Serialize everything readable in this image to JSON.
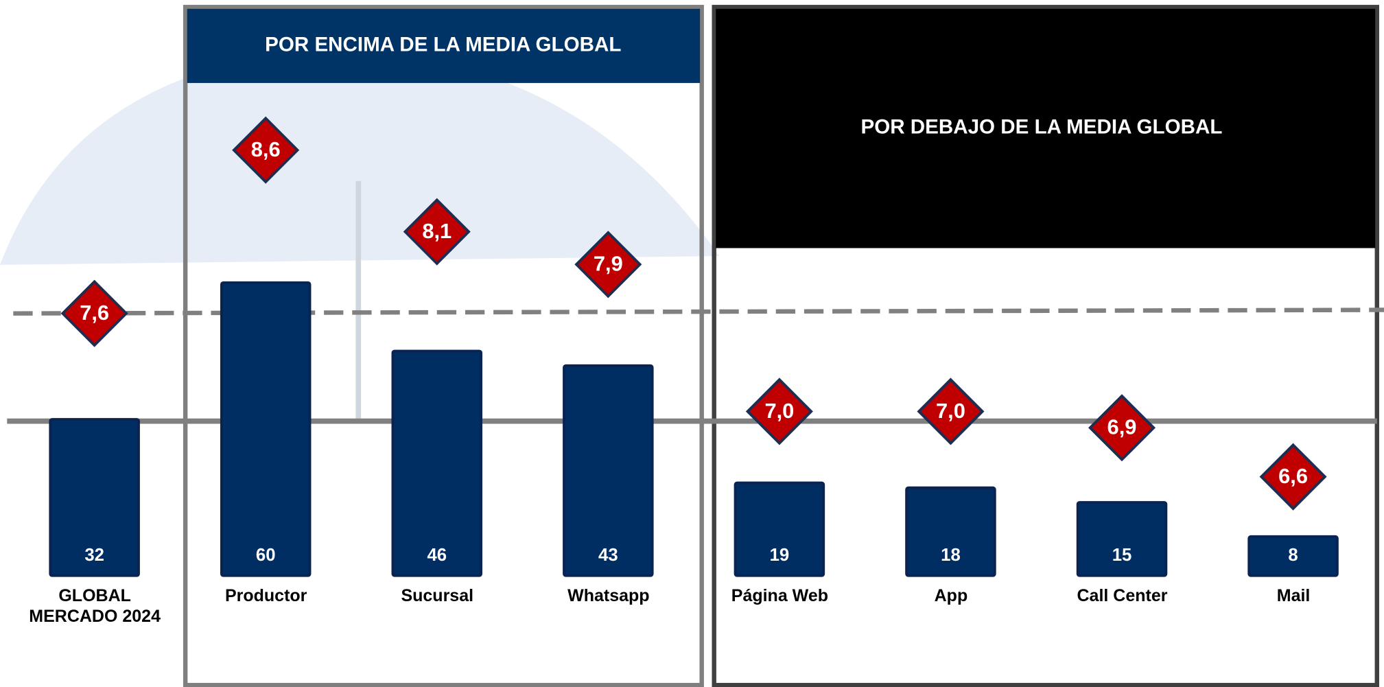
{
  "chart_data": {
    "type": "bar",
    "panels": [
      {
        "title": "POR ENCIMA DE LA MEDIA GLOBAL",
        "color": "#003366"
      },
      {
        "title": "POR DEBAJO DE LA MEDIA GLOBAL",
        "color": "#000000"
      }
    ],
    "categories": [
      "GLOBAL MERCADO 2024",
      "Productor",
      "Sucursal",
      "Whatsapp",
      "Página Web",
      "App",
      "Call Center",
      "Mail"
    ],
    "series": [
      {
        "values": [
          32,
          60,
          46,
          43,
          19,
          18,
          15,
          8
        ],
        "color": "#002d62"
      },
      {
        "values": [
          7.6,
          8.6,
          8.1,
          7.9,
          7.0,
          7.0,
          6.9,
          6.6
        ],
        "value_labels": [
          "7,6",
          "8,6",
          "8,1",
          "7,9",
          "7,0",
          "7,0",
          "6,9",
          "6,6"
        ],
        "color": "#c00000"
      }
    ]
  }
}
